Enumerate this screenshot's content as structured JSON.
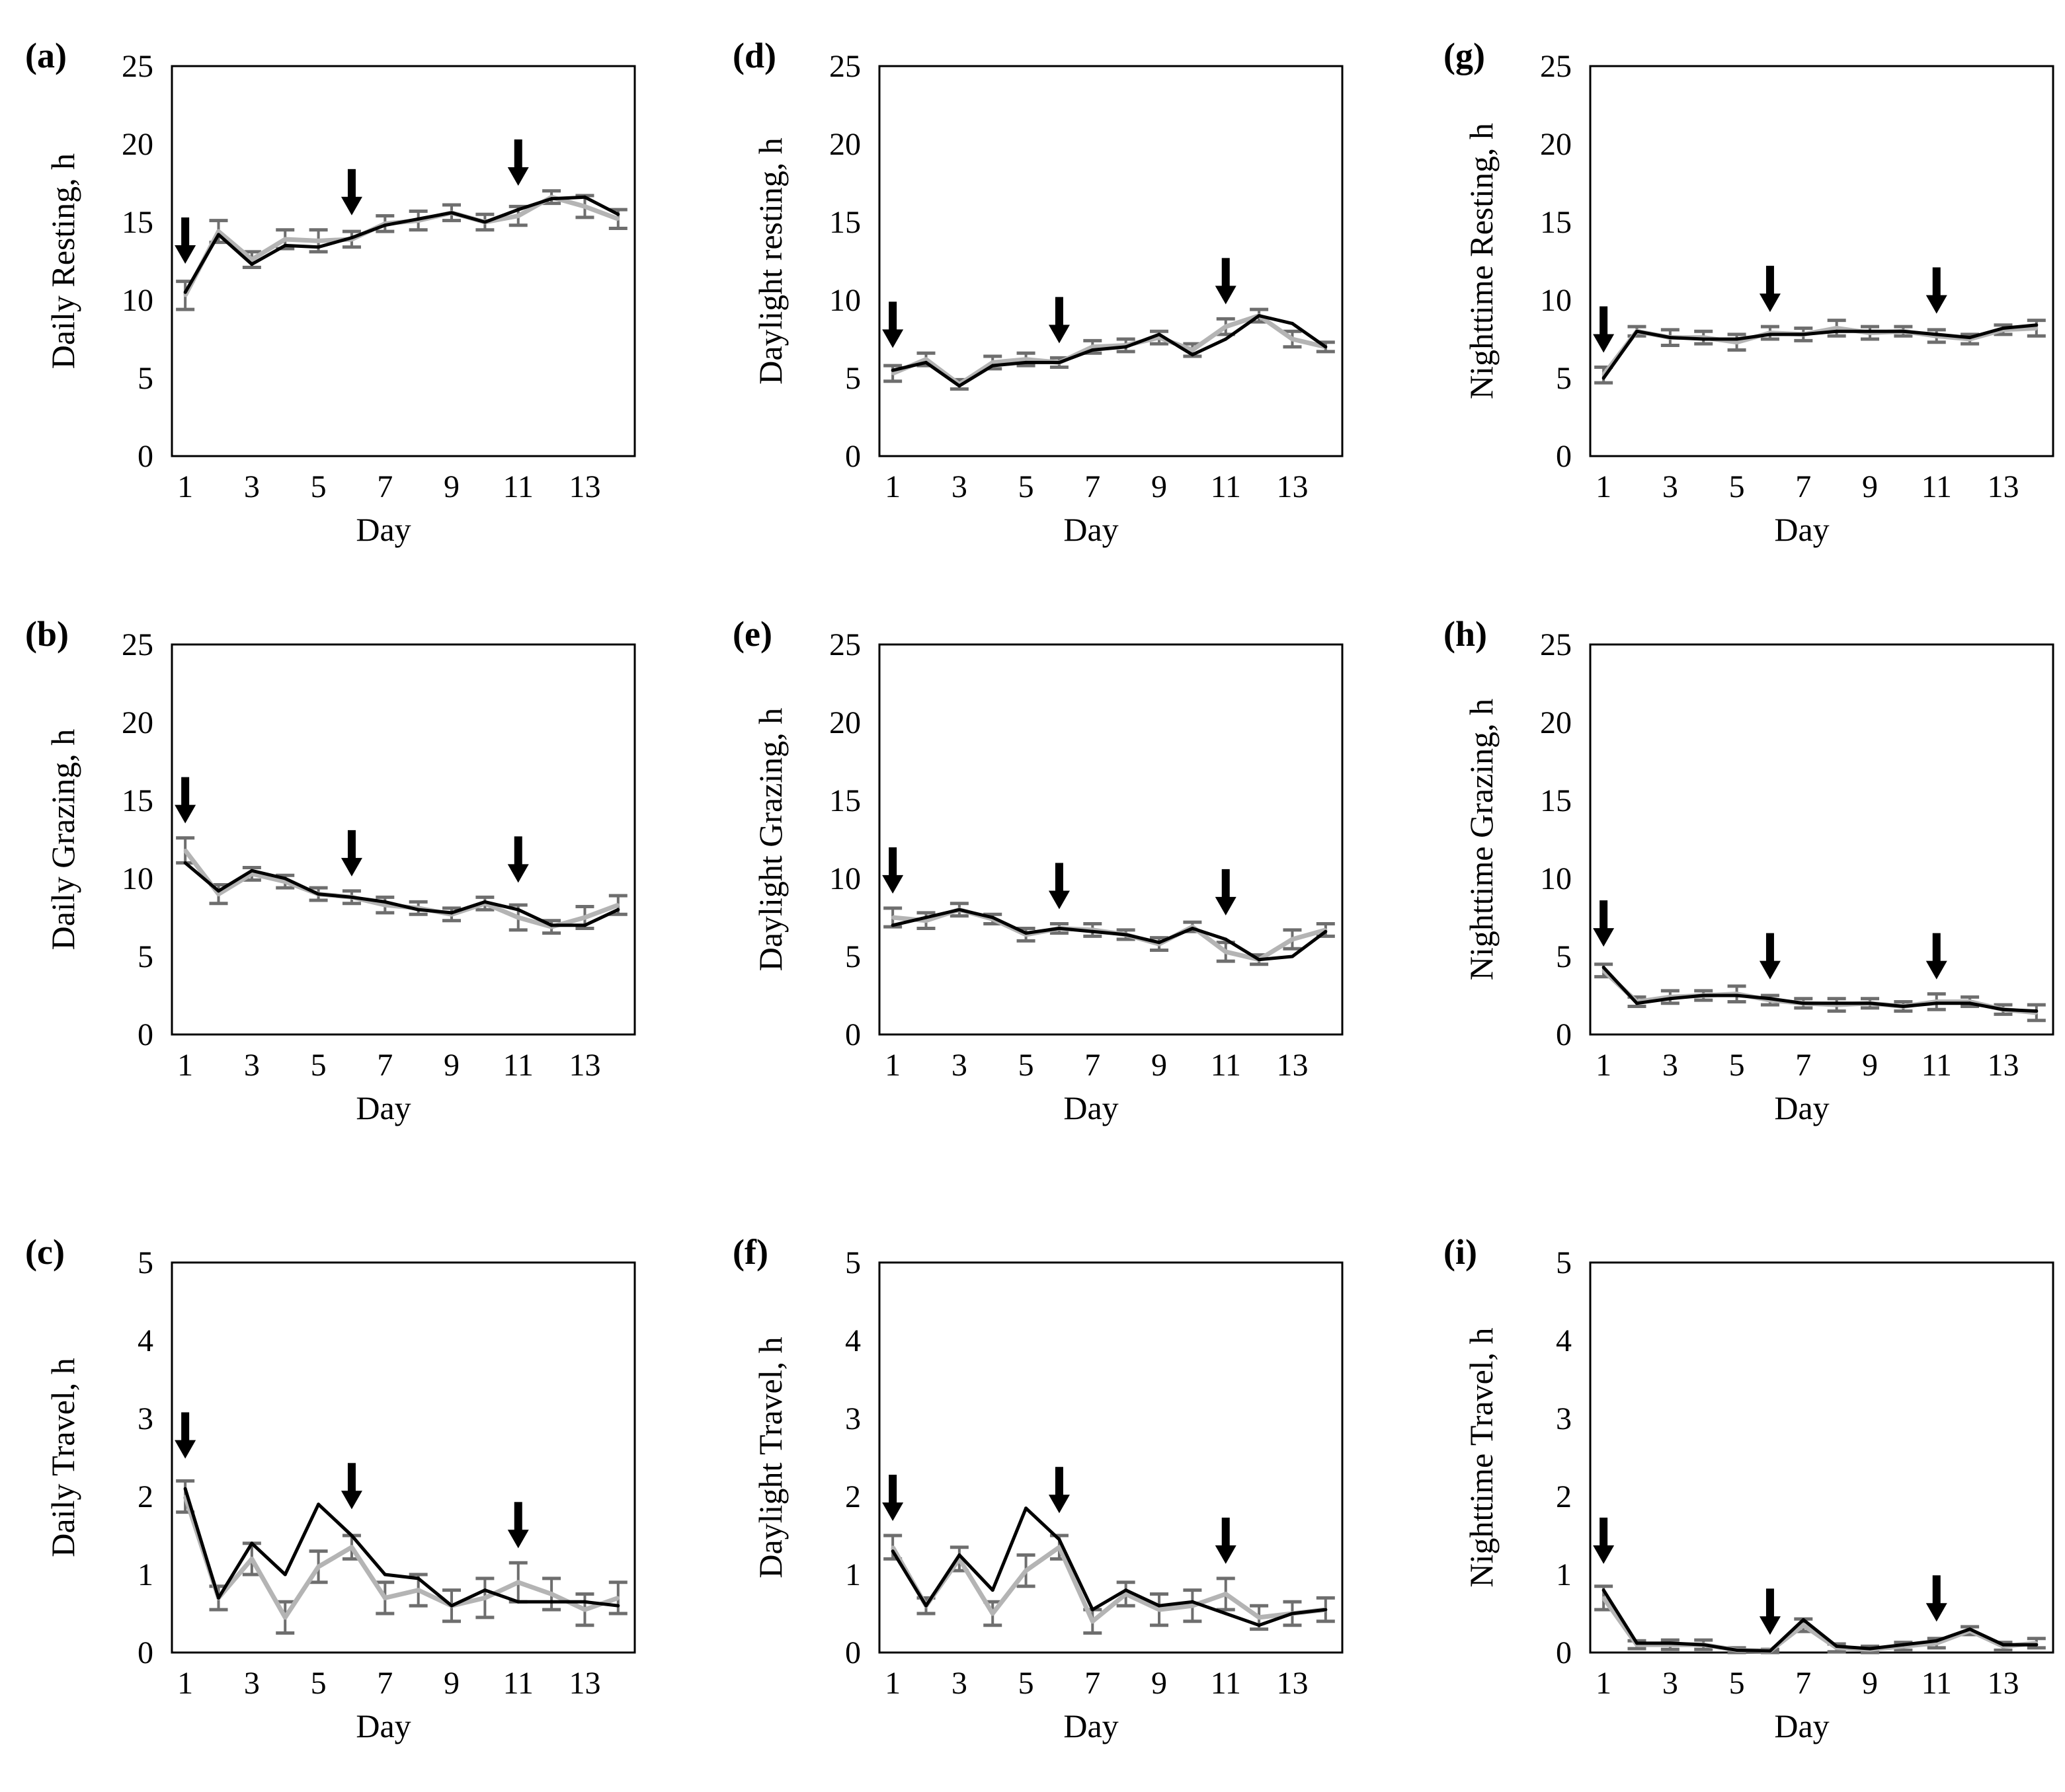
{
  "figure": {
    "panels": [
      {
        "id": "a",
        "letter": "(a)",
        "ylabel": "Daily Resting, h",
        "xlabel": "Day"
      },
      {
        "id": "b",
        "letter": "(b)",
        "ylabel": "Daily Grazing, h",
        "xlabel": "Day"
      },
      {
        "id": "c",
        "letter": "(c)",
        "ylabel": "Daily Travel, h",
        "xlabel": "Day"
      },
      {
        "id": "d",
        "letter": "(d)",
        "ylabel": "Daylight resting, h",
        "xlabel": "Day"
      },
      {
        "id": "e",
        "letter": "(e)",
        "ylabel": "Daylight Grazing, h",
        "xlabel": "Day"
      },
      {
        "id": "f",
        "letter": "(f)",
        "ylabel": "Daylight Travel, h",
        "xlabel": "Day"
      },
      {
        "id": "g",
        "letter": "(g)",
        "ylabel": "Nighttime Resting, h",
        "xlabel": "Day"
      },
      {
        "id": "h",
        "letter": "(h)",
        "ylabel": "Nighttime Grazing, h",
        "xlabel": "Day"
      },
      {
        "id": "i",
        "letter": "(i)",
        "ylabel": "Nighttime Travel, h",
        "xlabel": "Day"
      }
    ]
  },
  "colors": {
    "series_black": "#000000",
    "series_gray": "#b4b4b4",
    "error_bar": "#6e6e6e",
    "arrow": "#000000",
    "frame": "#000000"
  },
  "chart_data": [
    {
      "panel": "(a)",
      "type": "line",
      "ylabel": "Daily Resting, h",
      "xlabel": "Day",
      "x": [
        1,
        2,
        3,
        4,
        5,
        6,
        7,
        8,
        9,
        10,
        11,
        12,
        13,
        14
      ],
      "xticks": [
        1,
        3,
        5,
        7,
        9,
        11,
        13
      ],
      "xlim": [
        0.6,
        14.5
      ],
      "ylim": [
        0,
        25
      ],
      "yticks": [
        0,
        5,
        10,
        15,
        20,
        25
      ],
      "arrows_at_day": [
        1,
        6,
        11
      ],
      "series": [
        {
          "values": [
            10.5,
            14.2,
            12.3,
            13.5,
            13.4,
            14.0,
            14.8,
            15.2,
            15.6,
            15.0,
            15.8,
            16.5,
            16.6,
            15.5
          ],
          "color": "#000000"
        },
        {
          "values": [
            10.3,
            14.4,
            12.6,
            13.9,
            13.8,
            13.9,
            14.9,
            15.1,
            15.6,
            15.0,
            15.4,
            16.6,
            16.0,
            15.2
          ],
          "color": "#b4b4b4",
          "error": [
            0.9,
            0.7,
            0.5,
            0.6,
            0.7,
            0.5,
            0.5,
            0.6,
            0.5,
            0.5,
            0.6,
            0.4,
            0.7,
            0.6
          ]
        }
      ]
    },
    {
      "panel": "(b)",
      "type": "line",
      "ylabel": "Daily Grazing, h",
      "xlabel": "Day",
      "x": [
        1,
        2,
        3,
        4,
        5,
        6,
        7,
        8,
        9,
        10,
        11,
        12,
        13,
        14
      ],
      "xticks": [
        1,
        3,
        5,
        7,
        9,
        11,
        13
      ],
      "xlim": [
        0.6,
        14.5
      ],
      "ylim": [
        0,
        25
      ],
      "yticks": [
        0,
        5,
        10,
        15,
        20,
        25
      ],
      "arrows_at_day": [
        1,
        6,
        11
      ],
      "series": [
        {
          "values": [
            11.0,
            9.2,
            10.5,
            10.0,
            9.0,
            8.8,
            8.5,
            8.0,
            7.8,
            8.5,
            8.0,
            7.0,
            7.0,
            8.0
          ],
          "color": "#000000"
        },
        {
          "values": [
            11.8,
            9.0,
            10.3,
            9.8,
            9.0,
            8.8,
            8.3,
            8.1,
            7.7,
            8.4,
            7.5,
            6.9,
            7.5,
            8.3
          ],
          "color": "#b4b4b4",
          "error": [
            0.8,
            0.6,
            0.4,
            0.4,
            0.4,
            0.4,
            0.5,
            0.4,
            0.4,
            0.4,
            0.8,
            0.4,
            0.7,
            0.6
          ]
        }
      ]
    },
    {
      "panel": "(c)",
      "type": "line",
      "ylabel": "Daily Travel, h",
      "xlabel": "Day",
      "x": [
        1,
        2,
        3,
        4,
        5,
        6,
        7,
        8,
        9,
        10,
        11,
        12,
        13,
        14
      ],
      "xticks": [
        1,
        3,
        5,
        7,
        9,
        11,
        13
      ],
      "xlim": [
        0.6,
        14.5
      ],
      "ylim": [
        0,
        5
      ],
      "yticks": [
        0,
        1,
        2,
        3,
        4,
        5
      ],
      "arrows_at_day": [
        1,
        6,
        11
      ],
      "series": [
        {
          "values": [
            2.1,
            0.7,
            1.4,
            1.0,
            1.9,
            1.5,
            1.0,
            0.95,
            0.6,
            0.8,
            0.65,
            0.65,
            0.65,
            0.6
          ],
          "color": "#000000"
        },
        {
          "values": [
            2.0,
            0.7,
            1.2,
            0.45,
            1.1,
            1.35,
            0.7,
            0.8,
            0.6,
            0.7,
            0.9,
            0.75,
            0.55,
            0.7
          ],
          "color": "#b4b4b4",
          "error": [
            0.2,
            0.15,
            0.2,
            0.2,
            0.2,
            0.15,
            0.2,
            0.2,
            0.2,
            0.25,
            0.25,
            0.2,
            0.2,
            0.2
          ]
        }
      ]
    },
    {
      "panel": "(d)",
      "type": "line",
      "ylabel": "Daylight resting, h",
      "xlabel": "Day",
      "x": [
        1,
        2,
        3,
        4,
        5,
        6,
        7,
        8,
        9,
        10,
        11,
        12,
        13,
        14
      ],
      "xticks": [
        1,
        3,
        5,
        7,
        9,
        11,
        13
      ],
      "xlim": [
        0.6,
        14.5
      ],
      "ylim": [
        0,
        25
      ],
      "yticks": [
        0,
        5,
        10,
        15,
        20,
        25
      ],
      "arrows_at_day": [
        1,
        6,
        11
      ],
      "series": [
        {
          "values": [
            5.5,
            6.0,
            4.5,
            5.8,
            6.0,
            6.0,
            6.8,
            7.0,
            7.8,
            6.5,
            7.5,
            9.0,
            8.5,
            7.0
          ],
          "color": "#000000"
        },
        {
          "values": [
            5.3,
            6.2,
            4.6,
            6.0,
            6.2,
            6.0,
            7.0,
            7.1,
            7.6,
            6.8,
            8.3,
            9.0,
            7.5,
            7.0
          ],
          "color": "#b4b4b4",
          "error": [
            0.5,
            0.4,
            0.3,
            0.4,
            0.4,
            0.3,
            0.4,
            0.4,
            0.4,
            0.4,
            0.5,
            0.4,
            0.5,
            0.3
          ]
        }
      ]
    },
    {
      "panel": "(e)",
      "type": "line",
      "ylabel": "Daylight Grazing, h",
      "xlabel": "Day",
      "x": [
        1,
        2,
        3,
        4,
        5,
        6,
        7,
        8,
        9,
        10,
        11,
        12,
        13,
        14
      ],
      "xticks": [
        1,
        3,
        5,
        7,
        9,
        11,
        13
      ],
      "xlim": [
        0.6,
        14.5
      ],
      "ylim": [
        0,
        25
      ],
      "yticks": [
        0,
        5,
        10,
        15,
        20,
        25
      ],
      "arrows_at_day": [
        1,
        6,
        11
      ],
      "series": [
        {
          "values": [
            7.0,
            7.5,
            8.0,
            7.5,
            6.5,
            6.8,
            6.6,
            6.4,
            5.9,
            6.8,
            6.1,
            4.8,
            5.0,
            6.6
          ],
          "color": "#000000"
        },
        {
          "values": [
            7.5,
            7.3,
            8.0,
            7.4,
            6.4,
            6.8,
            6.7,
            6.4,
            5.8,
            6.9,
            5.3,
            4.8,
            6.1,
            6.7
          ],
          "color": "#b4b4b4",
          "error": [
            0.6,
            0.5,
            0.4,
            0.3,
            0.4,
            0.3,
            0.4,
            0.3,
            0.4,
            0.3,
            0.6,
            0.3,
            0.6,
            0.4
          ]
        }
      ]
    },
    {
      "panel": "(f)",
      "type": "line",
      "ylabel": "Daylight Travel, h",
      "xlabel": "Day",
      "x": [
        1,
        2,
        3,
        4,
        5,
        6,
        7,
        8,
        9,
        10,
        11,
        12,
        13,
        14
      ],
      "xticks": [
        1,
        3,
        5,
        7,
        9,
        11,
        13
      ],
      "xlim": [
        0.6,
        14.5
      ],
      "ylim": [
        0,
        5
      ],
      "yticks": [
        0,
        1,
        2,
        3,
        4,
        5
      ],
      "arrows_at_day": [
        1,
        6,
        11
      ],
      "series": [
        {
          "values": [
            1.3,
            0.6,
            1.25,
            0.8,
            1.85,
            1.45,
            0.55,
            0.8,
            0.6,
            0.65,
            0.5,
            0.35,
            0.5,
            0.55
          ],
          "color": "#000000"
        },
        {
          "values": [
            1.35,
            0.6,
            1.2,
            0.5,
            1.05,
            1.35,
            0.4,
            0.75,
            0.55,
            0.6,
            0.75,
            0.45,
            0.5,
            0.55
          ],
          "color": "#b4b4b4",
          "error": [
            0.15,
            0.1,
            0.15,
            0.15,
            0.2,
            0.15,
            0.15,
            0.15,
            0.2,
            0.2,
            0.2,
            0.15,
            0.15,
            0.15
          ]
        }
      ]
    },
    {
      "panel": "(g)",
      "type": "line",
      "ylabel": "Nighttime Resting, h",
      "xlabel": "Day",
      "x": [
        1,
        2,
        3,
        4,
        5,
        6,
        7,
        8,
        9,
        10,
        11,
        12,
        13,
        14
      ],
      "xticks": [
        1,
        3,
        5,
        7,
        9,
        11,
        13
      ],
      "xlim": [
        0.6,
        14.5
      ],
      "ylim": [
        0,
        25
      ],
      "yticks": [
        0,
        5,
        10,
        15,
        20,
        25
      ],
      "arrows_at_day": [
        1,
        6,
        11
      ],
      "series": [
        {
          "values": [
            5.0,
            8.0,
            7.6,
            7.5,
            7.5,
            7.8,
            7.8,
            8.0,
            8.0,
            8.0,
            7.8,
            7.6,
            8.2,
            8.4
          ],
          "color": "#000000"
        },
        {
          "values": [
            5.2,
            8.0,
            7.6,
            7.6,
            7.3,
            7.9,
            7.8,
            8.2,
            7.9,
            8.0,
            7.7,
            7.5,
            8.1,
            8.2
          ],
          "color": "#b4b4b4",
          "error": [
            0.5,
            0.3,
            0.5,
            0.4,
            0.5,
            0.4,
            0.4,
            0.5,
            0.4,
            0.3,
            0.4,
            0.3,
            0.3,
            0.5
          ]
        }
      ]
    },
    {
      "panel": "(h)",
      "type": "line",
      "ylabel": "Nighttime Grazing, h",
      "xlabel": "Day",
      "x": [
        1,
        2,
        3,
        4,
        5,
        6,
        7,
        8,
        9,
        10,
        11,
        12,
        13,
        14
      ],
      "xticks": [
        1,
        3,
        5,
        7,
        9,
        11,
        13
      ],
      "xlim": [
        0.6,
        14.5
      ],
      "ylim": [
        0,
        25
      ],
      "yticks": [
        0,
        5,
        10,
        15,
        20,
        25
      ],
      "arrows_at_day": [
        1,
        6,
        11
      ],
      "series": [
        {
          "values": [
            4.3,
            2.0,
            2.3,
            2.5,
            2.5,
            2.3,
            2.0,
            2.0,
            2.0,
            1.8,
            2.0,
            2.0,
            1.6,
            1.5
          ],
          "color": "#000000"
        },
        {
          "values": [
            4.1,
            2.1,
            2.4,
            2.5,
            2.6,
            2.2,
            2.0,
            1.9,
            2.0,
            1.8,
            2.1,
            2.1,
            1.6,
            1.4
          ],
          "color": "#b4b4b4",
          "error": [
            0.4,
            0.3,
            0.4,
            0.3,
            0.5,
            0.3,
            0.3,
            0.4,
            0.3,
            0.3,
            0.5,
            0.3,
            0.3,
            0.5
          ]
        }
      ]
    },
    {
      "panel": "(i)",
      "type": "line",
      "ylabel": "Nighttime Travel, h",
      "xlabel": "Day",
      "x": [
        1,
        2,
        3,
        4,
        5,
        6,
        7,
        8,
        9,
        10,
        11,
        12,
        13,
        14
      ],
      "xticks": [
        1,
        3,
        5,
        7,
        9,
        11,
        13
      ],
      "xlim": [
        0.6,
        14.5
      ],
      "ylim": [
        0,
        5
      ],
      "yticks": [
        0,
        1,
        2,
        3,
        4,
        5
      ],
      "arrows_at_day": [
        1,
        6,
        11
      ],
      "series": [
        {
          "values": [
            0.8,
            0.12,
            0.12,
            0.1,
            0.03,
            0.02,
            0.42,
            0.08,
            0.05,
            0.1,
            0.15,
            0.3,
            0.1,
            0.1
          ],
          "color": "#000000"
        },
        {
          "values": [
            0.7,
            0.1,
            0.1,
            0.1,
            0.03,
            0.02,
            0.35,
            0.06,
            0.04,
            0.08,
            0.12,
            0.28,
            0.08,
            0.12
          ],
          "color": "#b4b4b4",
          "error": [
            0.15,
            0.05,
            0.06,
            0.06,
            0.03,
            0.02,
            0.08,
            0.05,
            0.04,
            0.05,
            0.06,
            0.05,
            0.05,
            0.06
          ]
        }
      ]
    }
  ]
}
